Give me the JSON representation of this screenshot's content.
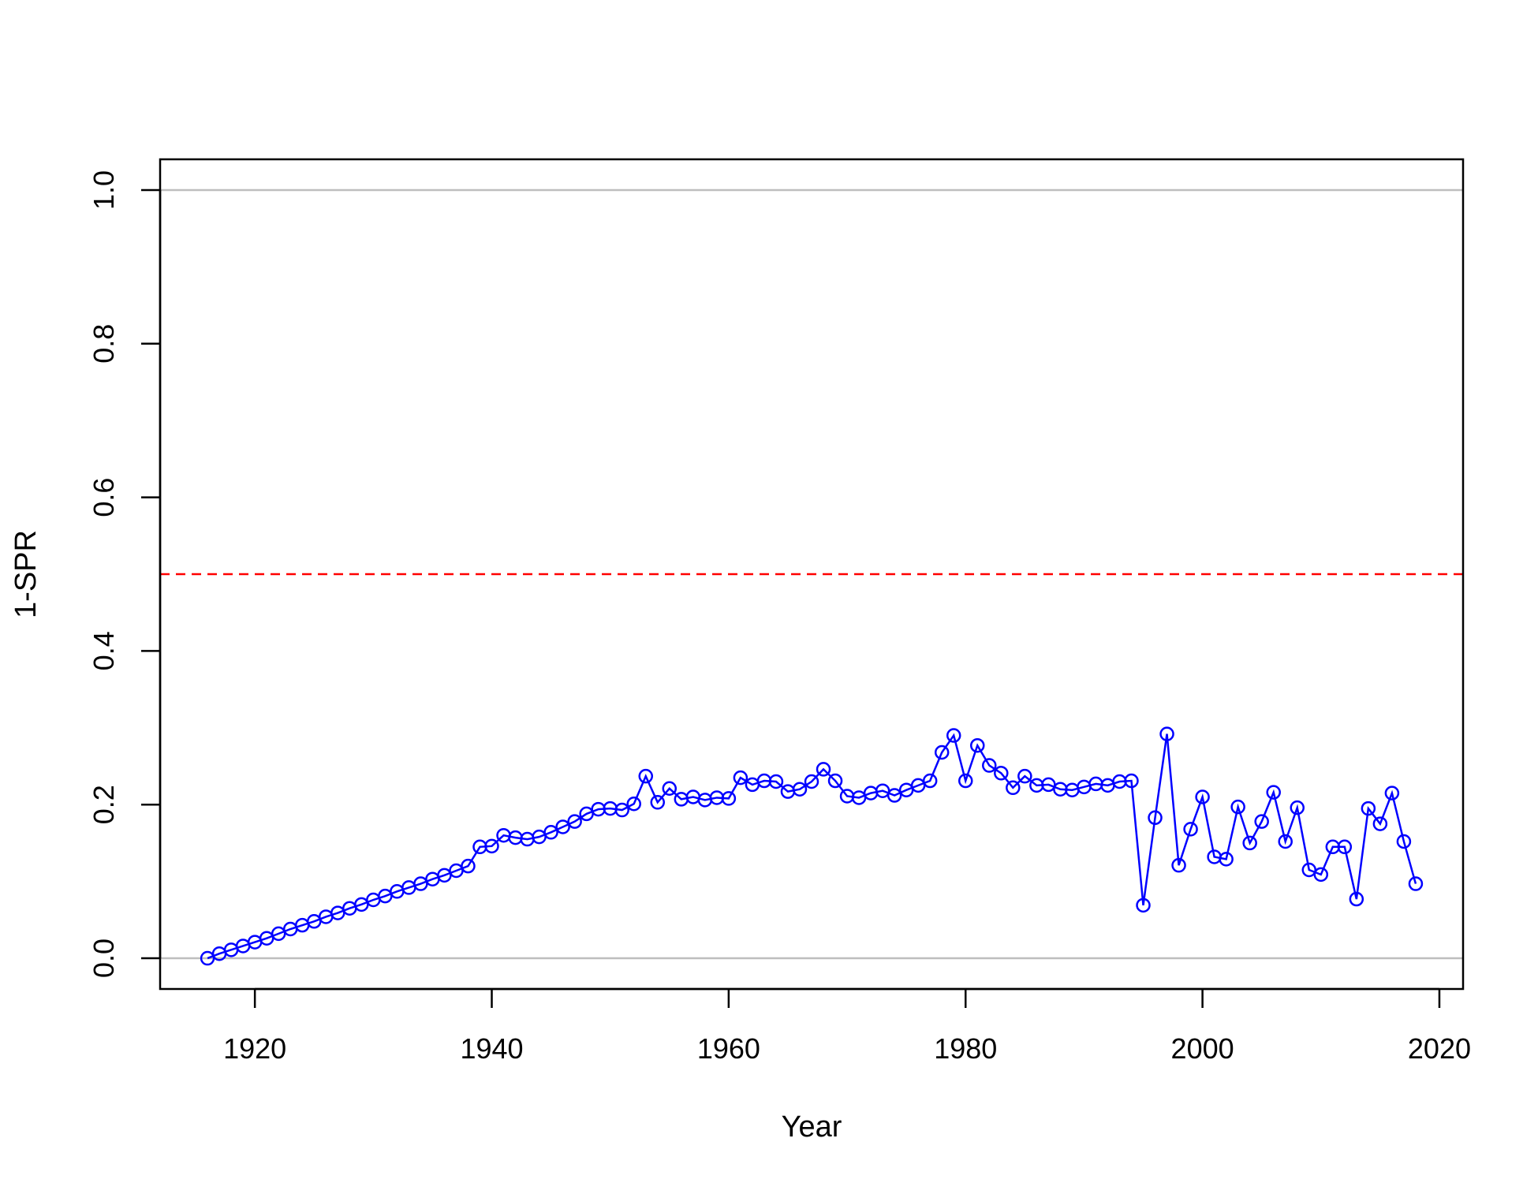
{
  "chart_data": {
    "type": "line",
    "title": "",
    "xlabel": "Year",
    "ylabel": "1-SPR",
    "xlim": [
      1912,
      2022
    ],
    "ylim": [
      -0.04,
      1.04
    ],
    "x_ticks": [
      1920,
      1940,
      1960,
      1980,
      2000,
      2020
    ],
    "y_ticks": [
      0.0,
      0.2,
      0.4,
      0.6,
      0.8,
      1.0
    ],
    "x_tick_labels": [
      "1920",
      "1940",
      "1960",
      "1980",
      "2000",
      "2020"
    ],
    "y_tick_labels": [
      "0.0",
      "0.2",
      "0.4",
      "0.6",
      "0.8",
      "1.0"
    ],
    "reference_lines": [
      {
        "y": 0.0,
        "color": "#bebebe",
        "style": "solid"
      },
      {
        "y": 1.0,
        "color": "#bebebe",
        "style": "solid"
      },
      {
        "y": 0.5,
        "color": "#ff0000",
        "style": "dashed"
      }
    ],
    "grid": false,
    "series": [
      {
        "color": "#0000ff",
        "marker": "open-circle",
        "x": [
          1916,
          1917,
          1918,
          1919,
          1920,
          1921,
          1922,
          1923,
          1924,
          1925,
          1926,
          1927,
          1928,
          1929,
          1930,
          1931,
          1932,
          1933,
          1934,
          1935,
          1936,
          1937,
          1938,
          1939,
          1940,
          1941,
          1942,
          1943,
          1944,
          1945,
          1946,
          1947,
          1948,
          1949,
          1950,
          1951,
          1952,
          1953,
          1954,
          1955,
          1956,
          1957,
          1958,
          1959,
          1960,
          1961,
          1962,
          1963,
          1964,
          1965,
          1966,
          1967,
          1968,
          1969,
          1970,
          1971,
          1972,
          1973,
          1974,
          1975,
          1976,
          1977,
          1978,
          1979,
          1980,
          1981,
          1982,
          1983,
          1984,
          1985,
          1986,
          1987,
          1988,
          1989,
          1990,
          1991,
          1992,
          1993,
          1994,
          1995,
          1996,
          1997,
          1998,
          1999,
          2000,
          2001,
          2002,
          2003,
          2004,
          2005,
          2006,
          2007,
          2008,
          2009,
          2010,
          2011,
          2012,
          2013,
          2014,
          2015,
          2016,
          2017,
          2018
        ],
        "y": [
          0.0,
          0.006,
          0.011,
          0.016,
          0.021,
          0.026,
          0.032,
          0.038,
          0.043,
          0.048,
          0.054,
          0.059,
          0.065,
          0.07,
          0.076,
          0.081,
          0.087,
          0.092,
          0.097,
          0.103,
          0.108,
          0.114,
          0.12,
          0.145,
          0.146,
          0.16,
          0.157,
          0.155,
          0.158,
          0.164,
          0.171,
          0.178,
          0.188,
          0.194,
          0.195,
          0.193,
          0.201,
          0.237,
          0.203,
          0.221,
          0.207,
          0.21,
          0.206,
          0.209,
          0.208,
          0.235,
          0.226,
          0.231,
          0.23,
          0.217,
          0.22,
          0.23,
          0.246,
          0.231,
          0.211,
          0.209,
          0.215,
          0.218,
          0.212,
          0.219,
          0.225,
          0.231,
          0.268,
          0.29,
          0.231,
          0.277,
          0.251,
          0.241,
          0.222,
          0.237,
          0.225,
          0.226,
          0.22,
          0.219,
          0.223,
          0.227,
          0.225,
          0.23,
          0.231,
          0.069,
          0.183,
          0.292,
          0.121,
          0.168,
          0.21,
          0.132,
          0.129,
          0.197,
          0.15,
          0.178,
          0.216,
          0.152,
          0.196,
          0.115,
          0.109,
          0.145,
          0.145,
          0.077,
          0.195,
          0.175,
          0.215,
          0.152,
          0.097
        ]
      }
    ]
  }
}
